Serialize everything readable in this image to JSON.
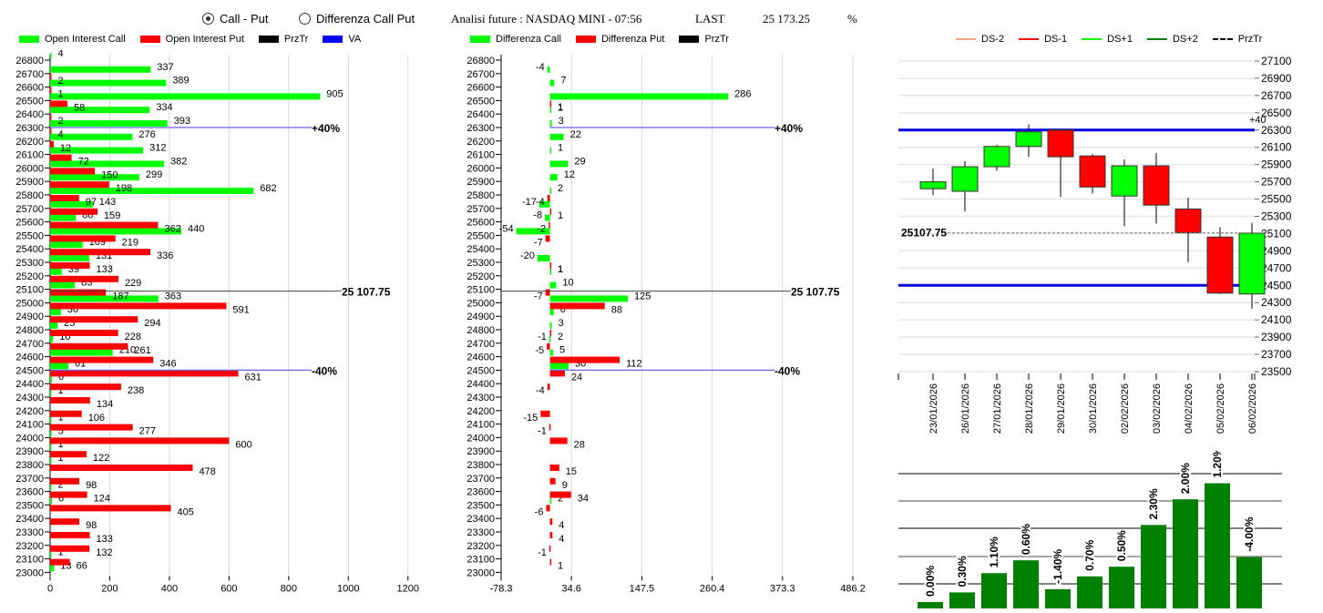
{
  "header": {
    "radio_options": [
      {
        "label": "Call - Put",
        "selected": true
      },
      {
        "label": "Differenza Call Put",
        "selected": false
      }
    ],
    "title": "Analisi future : NASDAQ MINI - 07:56",
    "last_label": "LAST",
    "last_value": "25 173.25",
    "percent_label": "%"
  },
  "colors": {
    "call": "#00ff00",
    "put": "#ff0000",
    "przTr": "#000000",
    "va": "#0000ff",
    "ds_minus2": "#f4a582",
    "ds_minus1": "#ff0000",
    "ds_plus1": "#00ff00",
    "ds_plus2": "#008000",
    "pct_bar": "#008000"
  },
  "chart_data": [
    {
      "id": "open-interest",
      "type": "bar",
      "orientation": "horizontal",
      "legend": [
        "Open Interest Call",
        "Open Interest Put",
        "PrzTr",
        "VA"
      ],
      "categories": [
        26800,
        26700,
        26600,
        26500,
        26400,
        26300,
        26200,
        26100,
        26000,
        25900,
        25800,
        25700,
        25600,
        25500,
        25400,
        25300,
        25200,
        25100,
        25000,
        24900,
        24800,
        24700,
        24600,
        24500,
        24400,
        24300,
        24200,
        24100,
        24000,
        23900,
        23800,
        23700,
        23600,
        23500,
        23400,
        23300,
        23200,
        23100,
        23000
      ],
      "series": [
        {
          "name": "Open Interest Call",
          "values": [
            4,
            337,
            389,
            905,
            334,
            393,
            276,
            312,
            382,
            299,
            682,
            143,
            86,
            440,
            109,
            131,
            39,
            83,
            363,
            36,
            25,
            10,
            210,
            61,
            6,
            1,
            0,
            1,
            5,
            1,
            1,
            0,
            2,
            6,
            0,
            0,
            0,
            1,
            13
          ]
        },
        {
          "name": "Open Interest Put",
          "values": [
            0,
            2,
            1,
            58,
            2,
            4,
            12,
            72,
            150,
            198,
            97,
            159,
            362,
            219,
            336,
            133,
            229,
            187,
            591,
            294,
            228,
            261,
            346,
            631,
            238,
            134,
            106,
            277,
            600,
            122,
            478,
            98,
            124,
            405,
            98,
            133,
            132,
            66,
            0
          ]
        }
      ],
      "xlim": [
        0,
        1500
      ],
      "xticks": [
        0,
        200,
        400,
        600,
        800,
        1000,
        1200,
        1400
      ],
      "przTr": {
        "strike": 25100,
        "label": "25 107.75"
      },
      "va_lines": [
        {
          "strike": 26300,
          "label": "+40%"
        },
        {
          "strike": 24500,
          "label": "-40%"
        }
      ],
      "grid": true
    },
    {
      "id": "differenza",
      "type": "bar",
      "orientation": "horizontal",
      "legend": [
        "Differenza Call",
        "Differenza Put",
        "PrzTr"
      ],
      "categories": [
        26800,
        26700,
        26600,
        26500,
        26400,
        26300,
        26200,
        26100,
        26000,
        25900,
        25800,
        25700,
        25600,
        25500,
        25400,
        25300,
        25200,
        25100,
        25000,
        24900,
        24800,
        24700,
        24600,
        24500,
        24400,
        24300,
        24200,
        24100,
        24000,
        23900,
        23800,
        23700,
        23600,
        23500,
        23400,
        23300,
        23200,
        23100,
        23000
      ],
      "series": [
        {
          "name": "Differenza Call",
          "values": [
            null,
            -4,
            7,
            286,
            1,
            3,
            22,
            1,
            29,
            12,
            2,
            -17,
            -8,
            -54,
            null,
            -20,
            1,
            10,
            125,
            6,
            3,
            -1,
            5,
            30,
            null,
            null,
            null,
            null,
            null,
            null,
            null,
            null,
            null,
            2,
            null,
            null,
            null,
            null,
            null
          ]
        },
        {
          "name": "Differenza Put",
          "values": [
            null,
            null,
            null,
            1,
            null,
            null,
            null,
            null,
            null,
            null,
            -4,
            1,
            -2,
            -7,
            null,
            1,
            null,
            -7,
            88,
            null,
            2,
            -5,
            112,
            24,
            -4,
            null,
            -15,
            -1,
            28,
            null,
            15,
            9,
            34,
            -6,
            4,
            4,
            -1,
            1,
            null
          ]
        }
      ],
      "xlim": [
        -78.3,
        533
      ],
      "xticks": [
        "-78.3",
        "34.6",
        "147.5",
        "260.4",
        "373.3",
        "486.2"
      ],
      "przTr": {
        "strike": 25100,
        "label": "25 107.75"
      },
      "va_lines": [
        {
          "strike": 26300,
          "label": "+40%"
        },
        {
          "strike": 24500,
          "label": "-40%"
        }
      ],
      "grid": true
    },
    {
      "id": "candles",
      "type": "candlestick",
      "legend": [
        "DS-2",
        "DS-1",
        "DS+1",
        "DS+2",
        "PrzTr"
      ],
      "x": [
        "23/01/2026",
        "26/01/2026",
        "27/01/2026",
        "28/01/2026",
        "29/01/2026",
        "30/01/2026",
        "02/02/2026",
        "03/02/2026",
        "04/02/2026",
        "05/02/2026",
        "06/02/2026"
      ],
      "ohlc": [
        {
          "open": 25620,
          "high": 25855,
          "low": 25545,
          "close": 25700
        },
        {
          "open": 25590,
          "high": 25940,
          "low": 25355,
          "close": 25875
        },
        {
          "open": 25875,
          "high": 26130,
          "low": 25830,
          "close": 26110
        },
        {
          "open": 26110,
          "high": 26365,
          "low": 25990,
          "close": 26280
        },
        {
          "open": 26300,
          "high": 26300,
          "low": 25525,
          "close": 25990
        },
        {
          "open": 26000,
          "high": 26025,
          "low": 25565,
          "close": 25640
        },
        {
          "open": 25535,
          "high": 25960,
          "low": 25185,
          "close": 25885
        },
        {
          "open": 25885,
          "high": 26035,
          "low": 25215,
          "close": 25430
        },
        {
          "open": 25385,
          "high": 25515,
          "low": 24770,
          "close": 25110
        },
        {
          "open": 25060,
          "high": 25175,
          "low": 24400,
          "close": 24410
        },
        {
          "open": 24400,
          "high": 25225,
          "low": 24230,
          "close": 25105
        }
      ],
      "ylim": [
        23500,
        27100
      ],
      "yticks": [
        27100,
        26900,
        26700,
        26500,
        26300,
        26100,
        25900,
        25700,
        25500,
        25300,
        25100,
        24900,
        24700,
        24500,
        24300,
        24100,
        23900,
        23700,
        23500
      ],
      "przTr": {
        "value": 25107.75,
        "label": "25107.75"
      },
      "va_lines": [
        {
          "value": 26300,
          "label": "+40"
        },
        {
          "value": 24500,
          "label": "-40"
        }
      ]
    },
    {
      "id": "daily-pct",
      "type": "bar",
      "title": "%",
      "categories": [
        "23/01/2026",
        "26/01/2026",
        "27/01/2026",
        "28/01/2026",
        "29/01/2026",
        "30/01/2026",
        "02/02/2026",
        "03/02/2026",
        "04/02/2026",
        "05/02/2026",
        "06/02/2026"
      ],
      "labels": [
        "0.00%",
        "0.30%",
        "1.10%",
        "0.60%",
        "-1.40%",
        "0.70%",
        "0.50%",
        "2.30%",
        "2.00%",
        "1.20%",
        "-4.00%"
      ],
      "values": [
        0.2,
        0.5,
        1.1,
        1.5,
        0.6,
        1.0,
        1.3,
        2.6,
        3.4,
        3.9,
        1.6
      ]
    }
  ]
}
